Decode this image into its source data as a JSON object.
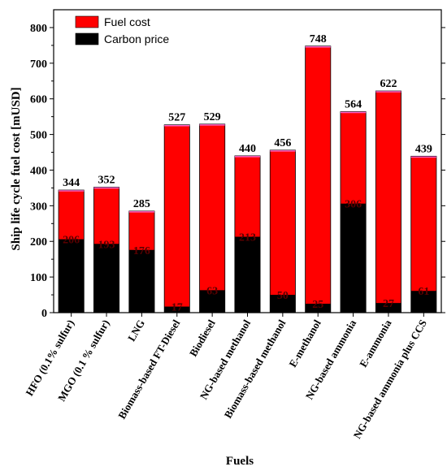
{
  "chart_data": {
    "type": "bar",
    "stacked": true,
    "ylabel": "Ship life cycle fuel cost [mUSD]",
    "xlabel": "Fuels",
    "ylim": [
      0,
      850
    ],
    "yticks": [
      0,
      100,
      200,
      300,
      400,
      500,
      600,
      700,
      800
    ],
    "legend_position": "top-left",
    "categories": [
      "HFO (0.1% sulfur)",
      "MGO (0.1 % sulfur)",
      "LNG",
      "Biomass-based FT-Diesel",
      "Biodiesel",
      "NG-based methanol",
      "Biomass-based methanol",
      "E-methanol",
      "NG-based ammonia",
      "E-ammonia",
      "NG-based ammonia plus CCS"
    ],
    "series": [
      {
        "name": "Carbon price",
        "color": "#000000",
        "values": [
          206,
          193,
          176,
          17,
          63,
          213,
          50,
          25,
          306,
          27,
          61
        ]
      },
      {
        "name": "Fuel cost",
        "color": "#ff0000",
        "values": [
          138,
          159,
          109,
          510,
          466,
          227,
          406,
          723,
          258,
          595,
          378
        ]
      }
    ],
    "totals": [
      344,
      352,
      285,
      527,
      529,
      440,
      456,
      748,
      564,
      622,
      439
    ],
    "bar_labels": [
      206,
      193,
      176,
      17,
      63,
      213,
      50,
      25,
      306,
      27,
      61
    ]
  }
}
